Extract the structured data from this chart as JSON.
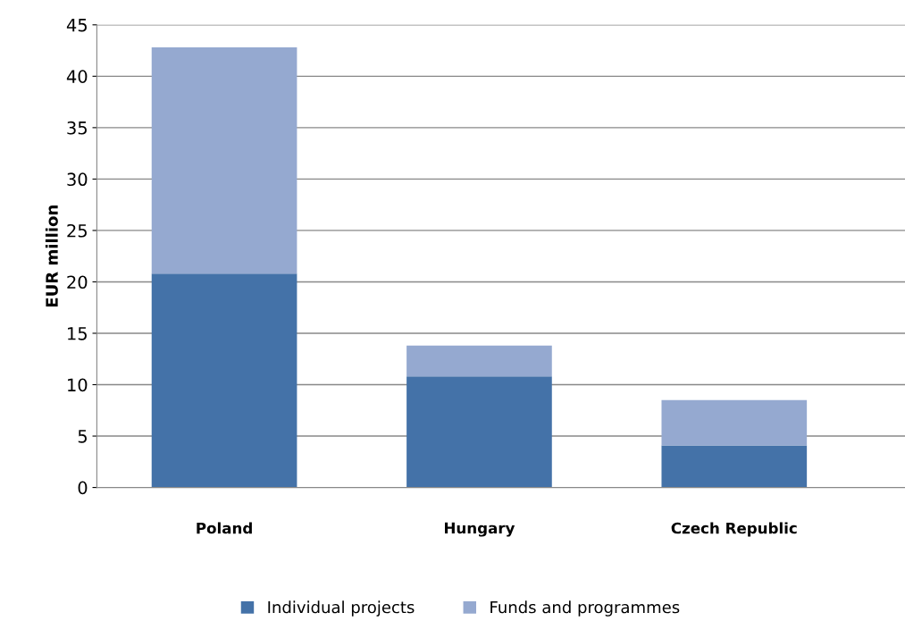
{
  "chart_data": {
    "type": "bar",
    "stacked": true,
    "ylabel": "EUR million",
    "categories": [
      "Poland",
      "Hungary",
      "Czech Republic"
    ],
    "series": [
      {
        "name": "Individual projects",
        "color": "#4472a8",
        "values": [
          20.8,
          10.8,
          4.1
        ]
      },
      {
        "name": "Funds and programmes",
        "color": "#95a9d0",
        "values": [
          22.0,
          3.0,
          4.4
        ]
      }
    ],
    "ylim": [
      0,
      45
    ],
    "yticks": [
      0,
      5,
      10,
      15,
      20,
      25,
      30,
      35,
      40,
      45
    ],
    "grid": "y",
    "legend": "bottom"
  }
}
